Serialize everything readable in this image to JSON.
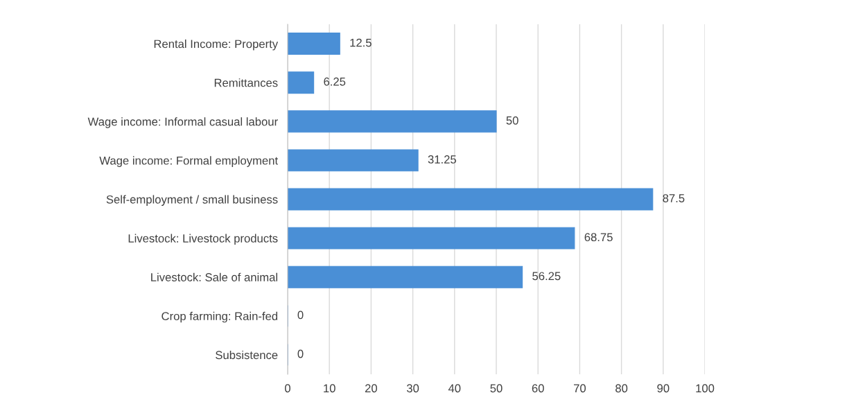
{
  "chart_data": {
    "type": "bar",
    "orientation": "horizontal",
    "categories": [
      "Rental Income: Property",
      "Remittances",
      "Wage income: Informal casual labour",
      "Wage income: Formal employment",
      "Self-employment / small business",
      "Livestock: Livestock products",
      "Livestock: Sale of animal",
      "Crop farming: Rain-fed",
      "Subsistence"
    ],
    "values": [
      12.5,
      6.25,
      50,
      31.25,
      87.5,
      68.75,
      56.25,
      0,
      0
    ],
    "color": "#4a8fd6",
    "xlim": [
      0,
      100
    ],
    "xticks": [
      0,
      10,
      20,
      30,
      40,
      50,
      60,
      70,
      80,
      90,
      100
    ],
    "grid": "x",
    "data_labels": true,
    "legend": false
  }
}
